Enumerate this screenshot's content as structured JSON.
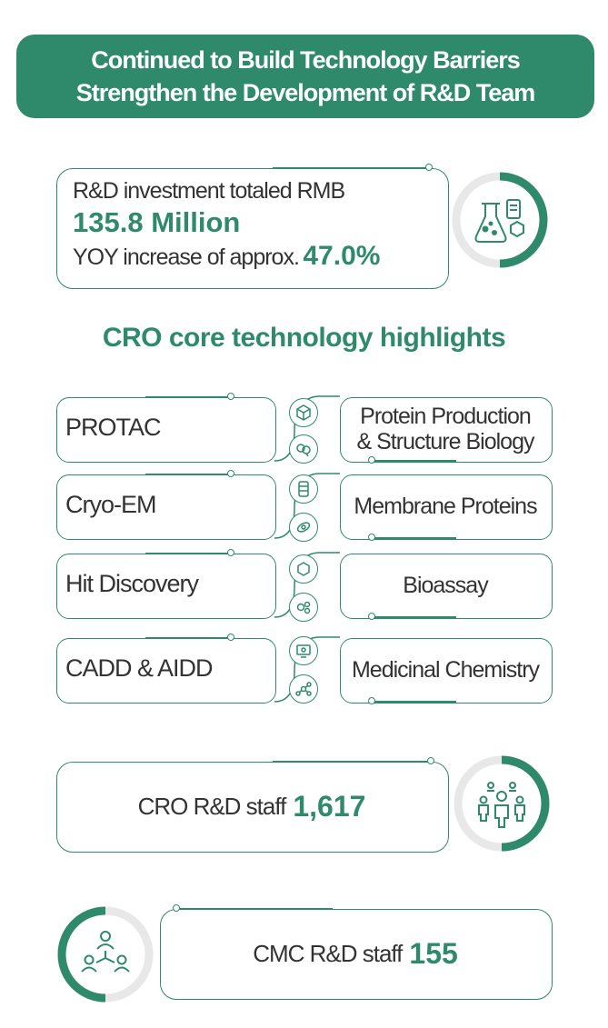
{
  "header": {
    "line1": "Continued to Build Technology Barriers",
    "line2": "Strengthen the Development of R&D Team"
  },
  "investment": {
    "line1": "R&D investment totaled RMB",
    "amount": "135.8 Million",
    "line3_prefix": "YOY increase of approx.",
    "percent": "47.0%",
    "icon": "lab-flask-icon"
  },
  "cro_section": {
    "title": "CRO core technology highlights",
    "rows": [
      {
        "left": "PROTAC",
        "right_line1": "Protein Production",
        "right_line2": "& Structure Biology"
      },
      {
        "left": "Cryo-EM",
        "right_line1": "Membrane Proteins",
        "right_line2": ""
      },
      {
        "left": "Hit Discovery",
        "right_line1": "Bioassay",
        "right_line2": ""
      },
      {
        "left": "CADD & AIDD",
        "right_line1": "Medicinal Chemistry",
        "right_line2": ""
      }
    ]
  },
  "cro_staff": {
    "label": "CRO R&D staff",
    "value": "1,617",
    "icon": "team-people-icon"
  },
  "cmc_staff": {
    "label": "CMC R&D staff",
    "value": "155",
    "icon": "network-people-icon"
  },
  "colors": {
    "accent": "#2f8a6b",
    "ring_gray": "#e8e8e8",
    "text": "#333333"
  }
}
